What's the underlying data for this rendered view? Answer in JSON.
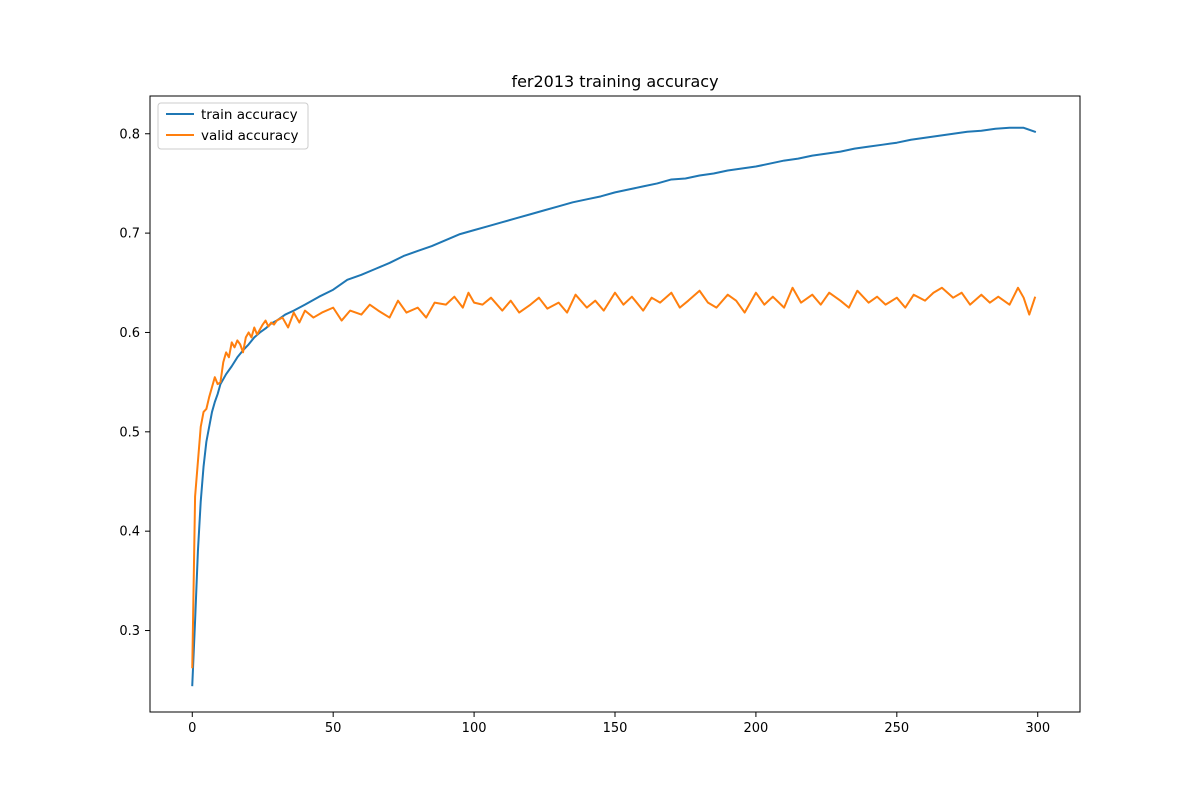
{
  "chart_data": {
    "type": "line",
    "title": "fer2013 training accuracy",
    "xlabel": "",
    "ylabel": "",
    "xlim": [
      -15,
      315
    ],
    "ylim": [
      0.218,
      0.838
    ],
    "x_ticks": [
      0,
      50,
      100,
      150,
      200,
      250,
      300
    ],
    "y_ticks": [
      0.3,
      0.4,
      0.5,
      0.6,
      0.7,
      0.8
    ],
    "grid": false,
    "legend_position": "upper-left",
    "series": [
      {
        "name": "train accuracy",
        "color": "#1f77b4",
        "x": [
          0,
          1,
          2,
          3,
          4,
          5,
          6,
          7,
          8,
          9,
          10,
          12,
          14,
          16,
          18,
          20,
          22,
          24,
          26,
          28,
          30,
          33,
          36,
          40,
          45,
          50,
          55,
          60,
          65,
          70,
          75,
          80,
          85,
          90,
          95,
          100,
          105,
          110,
          115,
          120,
          125,
          130,
          135,
          140,
          145,
          150,
          155,
          160,
          165,
          170,
          175,
          180,
          185,
          190,
          195,
          200,
          205,
          210,
          215,
          220,
          225,
          230,
          235,
          240,
          245,
          250,
          255,
          260,
          265,
          270,
          275,
          280,
          285,
          290,
          295,
          299
        ],
        "y": [
          0.245,
          0.31,
          0.38,
          0.43,
          0.465,
          0.49,
          0.505,
          0.52,
          0.53,
          0.538,
          0.548,
          0.558,
          0.566,
          0.575,
          0.582,
          0.588,
          0.595,
          0.6,
          0.604,
          0.609,
          0.612,
          0.618,
          0.622,
          0.628,
          0.636,
          0.643,
          0.653,
          0.658,
          0.664,
          0.67,
          0.677,
          0.682,
          0.687,
          0.693,
          0.699,
          0.703,
          0.707,
          0.711,
          0.715,
          0.719,
          0.723,
          0.727,
          0.731,
          0.734,
          0.737,
          0.741,
          0.744,
          0.747,
          0.75,
          0.754,
          0.755,
          0.758,
          0.76,
          0.763,
          0.765,
          0.767,
          0.77,
          0.773,
          0.775,
          0.778,
          0.78,
          0.782,
          0.785,
          0.787,
          0.789,
          0.791,
          0.794,
          0.796,
          0.798,
          0.8,
          0.802,
          0.803,
          0.805,
          0.806,
          0.806,
          0.802
        ]
      },
      {
        "name": "valid accuracy",
        "color": "#ff7f0e",
        "x": [
          0,
          1,
          2,
          3,
          4,
          5,
          6,
          7,
          8,
          9,
          10,
          11,
          12,
          13,
          14,
          15,
          16,
          17,
          18,
          19,
          20,
          21,
          22,
          23,
          24,
          25,
          26,
          27,
          28,
          29,
          30,
          32,
          34,
          36,
          38,
          40,
          43,
          46,
          50,
          53,
          56,
          60,
          63,
          66,
          70,
          73,
          76,
          80,
          83,
          86,
          90,
          93,
          96,
          98,
          100,
          103,
          106,
          110,
          113,
          116,
          120,
          123,
          126,
          130,
          133,
          136,
          140,
          143,
          146,
          150,
          153,
          156,
          160,
          163,
          166,
          170,
          173,
          176,
          180,
          183,
          186,
          190,
          193,
          196,
          200,
          203,
          206,
          210,
          213,
          216,
          220,
          223,
          226,
          230,
          233,
          236,
          240,
          243,
          246,
          250,
          253,
          256,
          260,
          263,
          266,
          270,
          273,
          276,
          280,
          283,
          286,
          290,
          293,
          295,
          297,
          299
        ],
        "y": [
          0.263,
          0.435,
          0.47,
          0.505,
          0.52,
          0.523,
          0.535,
          0.545,
          0.555,
          0.548,
          0.55,
          0.57,
          0.58,
          0.575,
          0.59,
          0.585,
          0.592,
          0.588,
          0.58,
          0.595,
          0.6,
          0.595,
          0.605,
          0.598,
          0.603,
          0.608,
          0.612,
          0.606,
          0.61,
          0.608,
          0.612,
          0.615,
          0.605,
          0.62,
          0.61,
          0.622,
          0.615,
          0.62,
          0.625,
          0.612,
          0.622,
          0.618,
          0.628,
          0.622,
          0.615,
          0.632,
          0.62,
          0.625,
          0.615,
          0.63,
          0.628,
          0.636,
          0.625,
          0.64,
          0.63,
          0.628,
          0.635,
          0.622,
          0.632,
          0.62,
          0.628,
          0.635,
          0.624,
          0.63,
          0.62,
          0.638,
          0.625,
          0.632,
          0.622,
          0.64,
          0.628,
          0.636,
          0.622,
          0.635,
          0.63,
          0.64,
          0.625,
          0.632,
          0.642,
          0.63,
          0.625,
          0.638,
          0.632,
          0.62,
          0.64,
          0.628,
          0.636,
          0.625,
          0.645,
          0.63,
          0.638,
          0.628,
          0.64,
          0.632,
          0.625,
          0.642,
          0.63,
          0.636,
          0.628,
          0.635,
          0.625,
          0.638,
          0.632,
          0.64,
          0.645,
          0.635,
          0.64,
          0.628,
          0.638,
          0.63,
          0.636,
          0.628,
          0.645,
          0.635,
          0.618,
          0.635
        ]
      }
    ]
  }
}
